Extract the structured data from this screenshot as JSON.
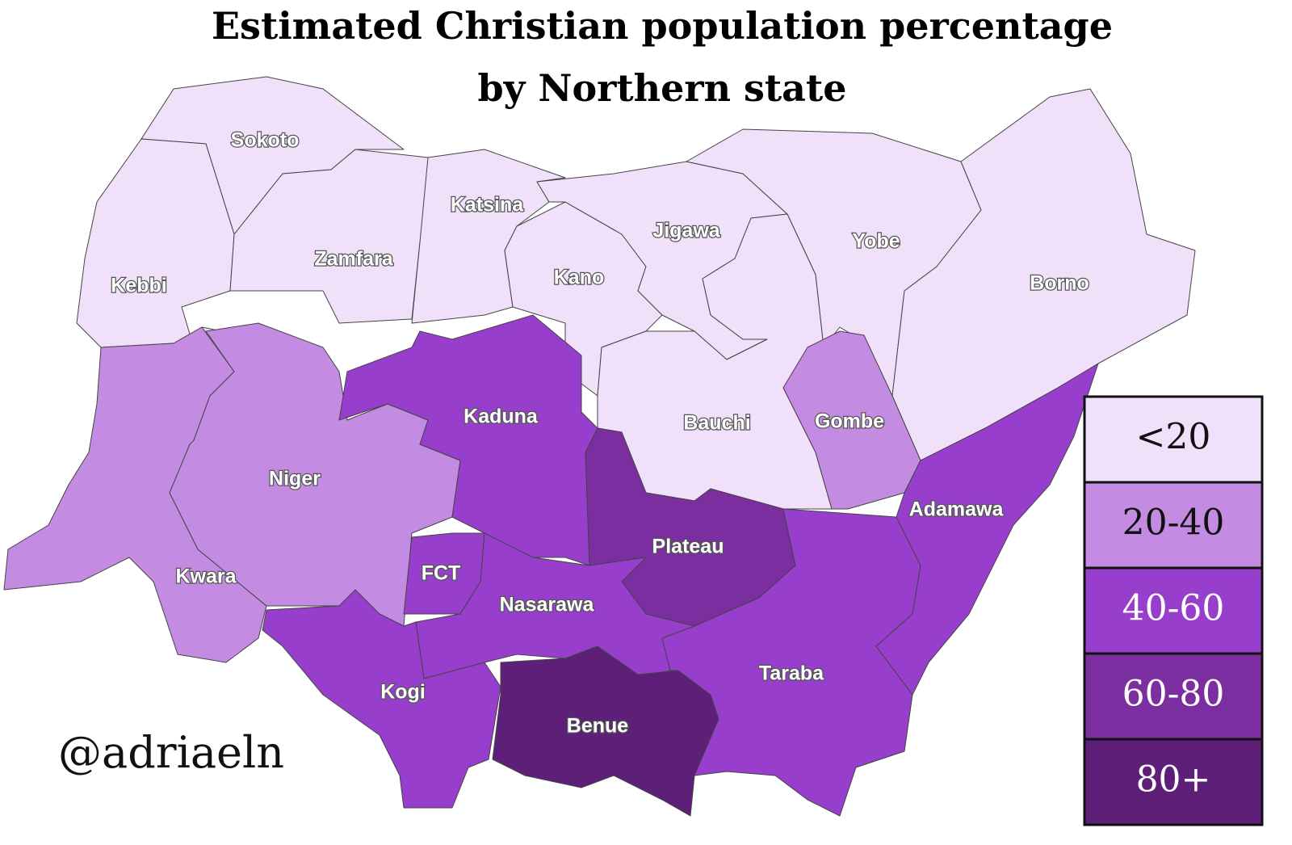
{
  "title": [
    "Estimated Christian population percentage",
    "by Northern state"
  ],
  "credit": "@adriaeln",
  "legend": [
    {
      "label": "<20",
      "color": "#f1e0f9"
    },
    {
      "label": "20-40",
      "color": "#c48be2"
    },
    {
      "label": "40-60",
      "color": "#983ecc"
    },
    {
      "label": "60-80",
      "color": "#7a2e9f"
    },
    {
      "label": "80+",
      "color": "#5d1f78"
    }
  ],
  "states": [
    {
      "name": "Sokoto",
      "color": "#f1e0f9"
    },
    {
      "name": "Kebbi",
      "color": "#f1e0f9"
    },
    {
      "name": "Zamfara",
      "color": "#f1e0f9"
    },
    {
      "name": "Katsina",
      "color": "#f1e0f9"
    },
    {
      "name": "Kano",
      "color": "#f1e0f9"
    },
    {
      "name": "Jigawa",
      "color": "#f1e0f9"
    },
    {
      "name": "Yobe",
      "color": "#f1e0f9"
    },
    {
      "name": "Borno",
      "color": "#f1e0f9"
    },
    {
      "name": "Bauchi",
      "color": "#f1e0f9"
    },
    {
      "name": "Gombe",
      "color": "#c48be2"
    },
    {
      "name": "Kwara",
      "color": "#c48be2"
    },
    {
      "name": "Niger",
      "color": "#c48be2"
    },
    {
      "name": "Kaduna",
      "color": "#983ecc"
    },
    {
      "name": "Plateau",
      "color": "#7a2e9f"
    },
    {
      "name": "FCT",
      "color": "#983ecc"
    },
    {
      "name": "Nasarawa",
      "color": "#983ecc"
    },
    {
      "name": "Kogi",
      "color": "#983ecc"
    },
    {
      "name": "Benue",
      "color": "#5d1f78"
    },
    {
      "name": "Taraba",
      "color": "#983ecc"
    },
    {
      "name": "Adamawa",
      "color": "#983ecc"
    }
  ]
}
